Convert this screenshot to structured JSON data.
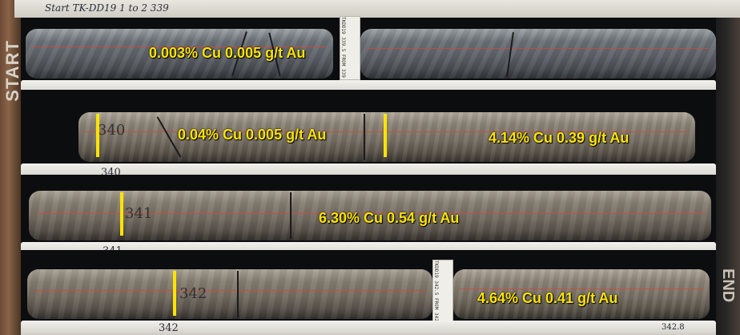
{
  "header": {
    "handwriting": "Start TK-DD19   1 to 2   339"
  },
  "sides": {
    "left_label": "START",
    "right_label": "END"
  },
  "rows": [
    {
      "assays": [
        {
          "label": "0.003% Cu 0.005 g/t Au"
        }
      ],
      "tag_text": "TKDD19 339.5 FROM 339"
    },
    {
      "divider_marker": "340",
      "core_mark": "340",
      "assays": [
        {
          "label": "0.04% Cu 0.005 g/t Au"
        },
        {
          "label": "4.14% Cu 0.39 g/t Au"
        }
      ]
    },
    {
      "divider_marker": "341",
      "core_mark": "341",
      "assays": [
        {
          "label": "6.30% Cu 0.54 g/t Au"
        }
      ]
    },
    {
      "divider_marker": "342",
      "core_mark": "342",
      "assays": [
        {
          "label": "4.64% Cu 0.41 g/t Au"
        }
      ],
      "tag_text": "TKDD19 342.5 FROM 342",
      "end_marker": "342.8"
    }
  ],
  "colors": {
    "assay_label": "#ffe400",
    "interval_bar": "#ffe400",
    "core_tray_divider": "#e6e4de"
  }
}
